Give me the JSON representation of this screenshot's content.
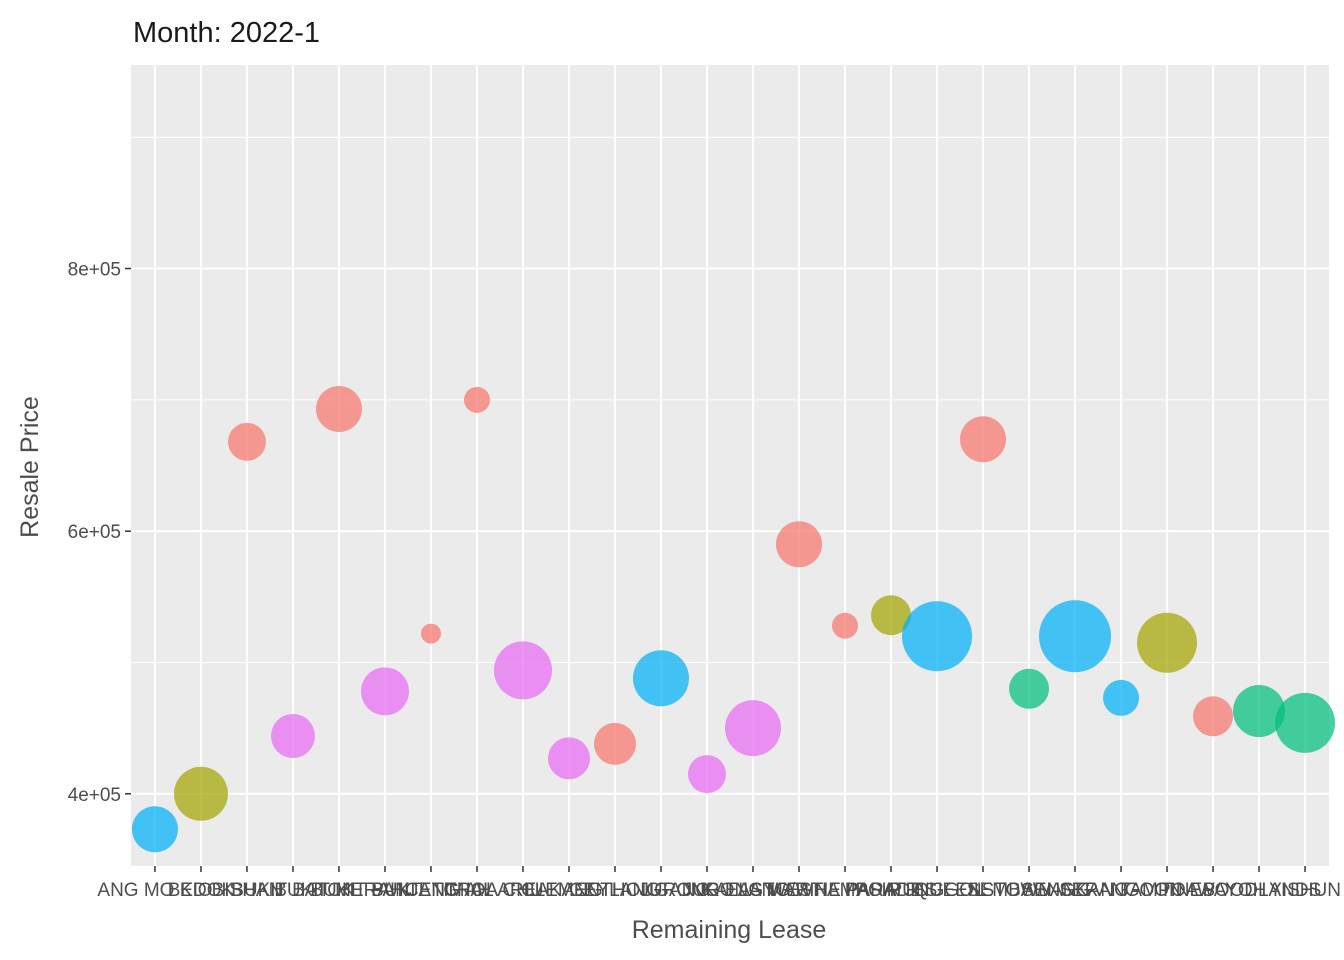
{
  "chart_data": {
    "type": "scatter",
    "title": "Month: 2022-1",
    "xlabel": "Remaining Lease",
    "ylabel": "Resale Price",
    "ylim": [
      345000,
      955000
    ],
    "y_ticks": [
      400000,
      600000,
      800000
    ],
    "y_tick_labels": [
      "4e+05",
      "6e+05",
      "8e+05"
    ],
    "grid": true,
    "legend": "none",
    "categories": [
      "ANG MO KIO",
      "BEDOK",
      "BISHAN",
      "BUKIT BATOK",
      "BUKIT MERAH",
      "BUKIT PANJANG",
      "BUKIT TIMAH",
      "CENTRAL AREA",
      "CHOA CHU KANG",
      "CLEMENTI",
      "GEYLANG",
      "HOUGANG",
      "JURONG EAST",
      "JURONG WEST",
      "KALLANG/WHAMPOA",
      "MARINE PARADE",
      "PASIR RIS",
      "PUNGGOL",
      "QUEENSTOWN",
      "SEMBAWANG",
      "SENGKANG",
      "SERANGOON",
      "TAMPINES",
      "TOA PAYOH",
      "WOODLANDS",
      "YISHUN"
    ],
    "colors": {
      "red": "#F8766D",
      "olive": "#A3A500",
      "green": "#00BF7D",
      "blue": "#00B0F6",
      "pink": "#E76BF3"
    },
    "points": [
      {
        "category": "ANG MO KIO",
        "y": 373000,
        "size": 23,
        "color": "#00B0F6"
      },
      {
        "category": "BEDOK",
        "y": 400000,
        "size": 27,
        "color": "#A3A500"
      },
      {
        "category": "BISHAN",
        "y": 668000,
        "size": 19,
        "color": "#F8766D"
      },
      {
        "category": "BUKIT BATOK",
        "y": 444000,
        "size": 22,
        "color": "#E76BF3"
      },
      {
        "category": "BUKIT MERAH",
        "y": 693000,
        "size": 23,
        "color": "#F8766D"
      },
      {
        "category": "BUKIT PANJANG",
        "y": 478000,
        "size": 24,
        "color": "#E76BF3"
      },
      {
        "category": "BUKIT TIMAH",
        "y": 522000,
        "size": 10,
        "color": "#F8766D"
      },
      {
        "category": "CENTRAL AREA",
        "y": 700000,
        "size": 13,
        "color": "#F8766D"
      },
      {
        "category": "CHOA CHU KANG",
        "y": 494000,
        "size": 29,
        "color": "#E76BF3"
      },
      {
        "category": "CLEMENTI",
        "y": 427000,
        "size": 21,
        "color": "#E76BF3"
      },
      {
        "category": "GEYLANG",
        "y": 438000,
        "size": 21,
        "color": "#F8766D"
      },
      {
        "category": "HOUGANG",
        "y": 488000,
        "size": 28,
        "color": "#00B0F6"
      },
      {
        "category": "JURONG EAST",
        "y": 415000,
        "size": 19,
        "color": "#E76BF3"
      },
      {
        "category": "JURONG WEST",
        "y": 450000,
        "size": 28,
        "color": "#E76BF3"
      },
      {
        "category": "KALLANG/WHAMPOA",
        "y": 590000,
        "size": 23,
        "color": "#F8766D"
      },
      {
        "category": "MARINE PARADE",
        "y": 528000,
        "size": 13,
        "color": "#F8766D"
      },
      {
        "category": "PASIR RIS",
        "y": 536000,
        "size": 20,
        "color": "#A3A500"
      },
      {
        "category": "PUNGGOL",
        "y": 520000,
        "size": 35,
        "color": "#00B0F6"
      },
      {
        "category": "QUEENSTOWN",
        "y": 670000,
        "size": 23,
        "color": "#F8766D"
      },
      {
        "category": "SEMBAWANG",
        "y": 480000,
        "size": 20,
        "color": "#00BF7D"
      },
      {
        "category": "SENGKANG",
        "y": 520000,
        "size": 36,
        "color": "#00B0F6"
      },
      {
        "category": "SERANGOON",
        "y": 473000,
        "size": 18,
        "color": "#00B0F6"
      },
      {
        "category": "TAMPINES",
        "y": 515000,
        "size": 30,
        "color": "#A3A500"
      },
      {
        "category": "TOA PAYOH",
        "y": 459000,
        "size": 20,
        "color": "#F8766D"
      },
      {
        "category": "WOODLANDS",
        "y": 463000,
        "size": 26,
        "color": "#00BF7D"
      },
      {
        "category": "YISHUN",
        "y": 454000,
        "size": 30,
        "color": "#00BF7D"
      }
    ]
  }
}
